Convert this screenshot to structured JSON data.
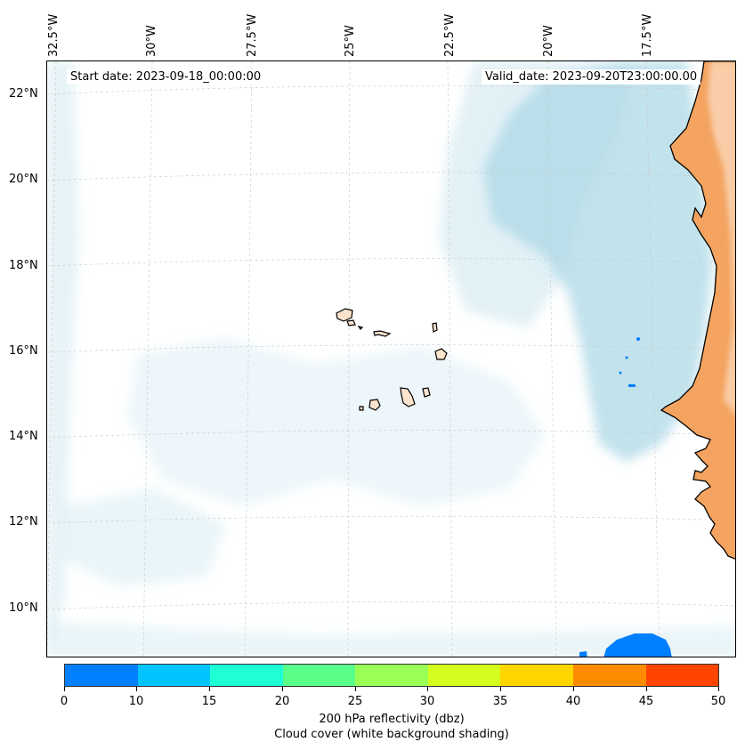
{
  "map": {
    "start_date_label": "Start date: 2023-09-18_00:00:00",
    "valid_date_label": "Valid_date: 2023-09-20T23:00:00.00",
    "lat_labels": [
      "22°N",
      "20°N",
      "18°N",
      "16°N",
      "14°N",
      "12°N",
      "10°N"
    ],
    "lon_labels": [
      "32.5°W",
      "30°W",
      "27.5°W",
      "25°W",
      "22.5°W",
      "20°W",
      "17.5°W"
    ],
    "colors": {
      "land": "#f4a460",
      "cloud": "#add8e6",
      "coastline": "#000000",
      "gridline": "#c8c8c8"
    },
    "features": {
      "region": "Cape Verde islands and West African coast",
      "islands": "Cape Verde archipelago"
    }
  },
  "colorbar": {
    "title": "200 hPa reflectivity (dbz)",
    "subtitle": "Cloud cover (white background shading)",
    "tick_labels": [
      "0",
      "10",
      "15",
      "20",
      "25",
      "30",
      "35",
      "40",
      "45",
      "50"
    ],
    "segment_colors": [
      "#0080ff",
      "#00c4ff",
      "#1effd6",
      "#5aff8a",
      "#9aff55",
      "#d4ff1e",
      "#ffd500",
      "#ff8c00",
      "#ff4500"
    ]
  }
}
